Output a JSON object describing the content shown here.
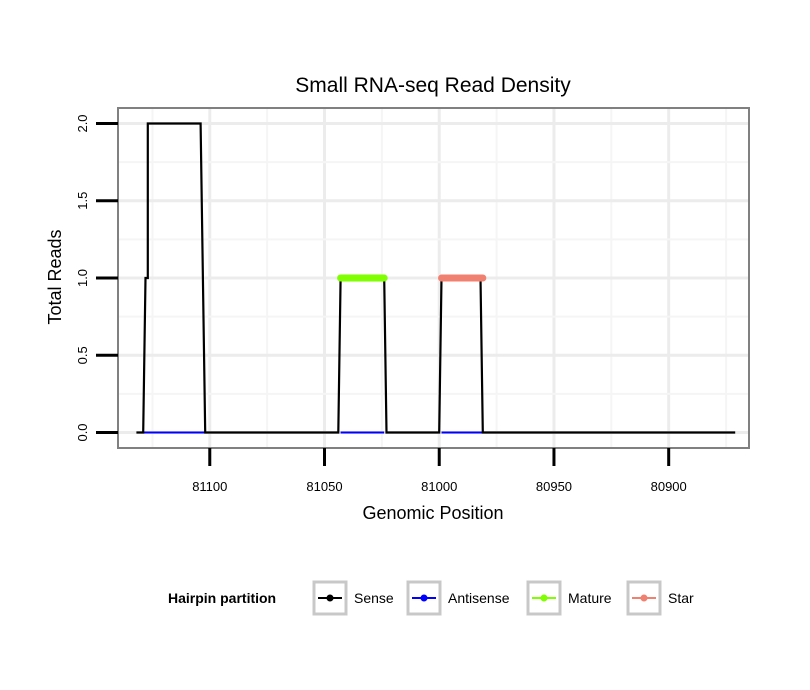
{
  "chart_data": {
    "type": "line",
    "title": "Small RNA-seq Read Density",
    "xlabel": "Genomic Position",
    "ylabel": "Total Reads",
    "x_reversed": true,
    "xlim": [
      81140,
      80865
    ],
    "ylim": [
      -0.1,
      2.1
    ],
    "x_ticks": [
      81100,
      81050,
      81000,
      80950,
      80900
    ],
    "x_tick_labels": [
      "81100",
      "81050",
      "81000",
      "80950",
      "80900"
    ],
    "y_ticks": [
      0,
      0.5,
      1,
      1.5,
      2
    ],
    "y_tick_labels": [
      "0.0",
      "0.5",
      "1.0",
      "1.5",
      "2.0"
    ],
    "grid": true,
    "legend": {
      "title": "Hairpin partition",
      "position": "bottom",
      "items": [
        {
          "name": "Sense",
          "color": "#000000"
        },
        {
          "name": "Antisense",
          "color": "#0000ff"
        },
        {
          "name": "Mature",
          "color": "#7fff00"
        },
        {
          "name": "Star",
          "color": "#f08070"
        }
      ]
    },
    "series": [
      {
        "name": "Sense",
        "color": "#000000",
        "x": [
          81132,
          81129,
          81128,
          81127,
          81127,
          81104,
          81102,
          81044,
          81043,
          81024,
          81023,
          81000,
          80999,
          80982,
          80981,
          80871
        ],
        "y": [
          0,
          0,
          1,
          1,
          2,
          2,
          0,
          0,
          1,
          1,
          0,
          0,
          1,
          1,
          0,
          0
        ]
      },
      {
        "name": "Antisense",
        "color": "#0000ff",
        "segments": [
          [
            81129,
            81102
          ],
          [
            81043,
            81024
          ],
          [
            80999,
            80981
          ]
        ],
        "value": 0
      },
      {
        "name": "Mature",
        "color": "#7fff00",
        "segments": [
          [
            81043,
            81024
          ]
        ],
        "value": 1
      },
      {
        "name": "Star",
        "color": "#f08070",
        "segments": [
          [
            80999,
            80981
          ]
        ],
        "value": 1
      }
    ]
  }
}
